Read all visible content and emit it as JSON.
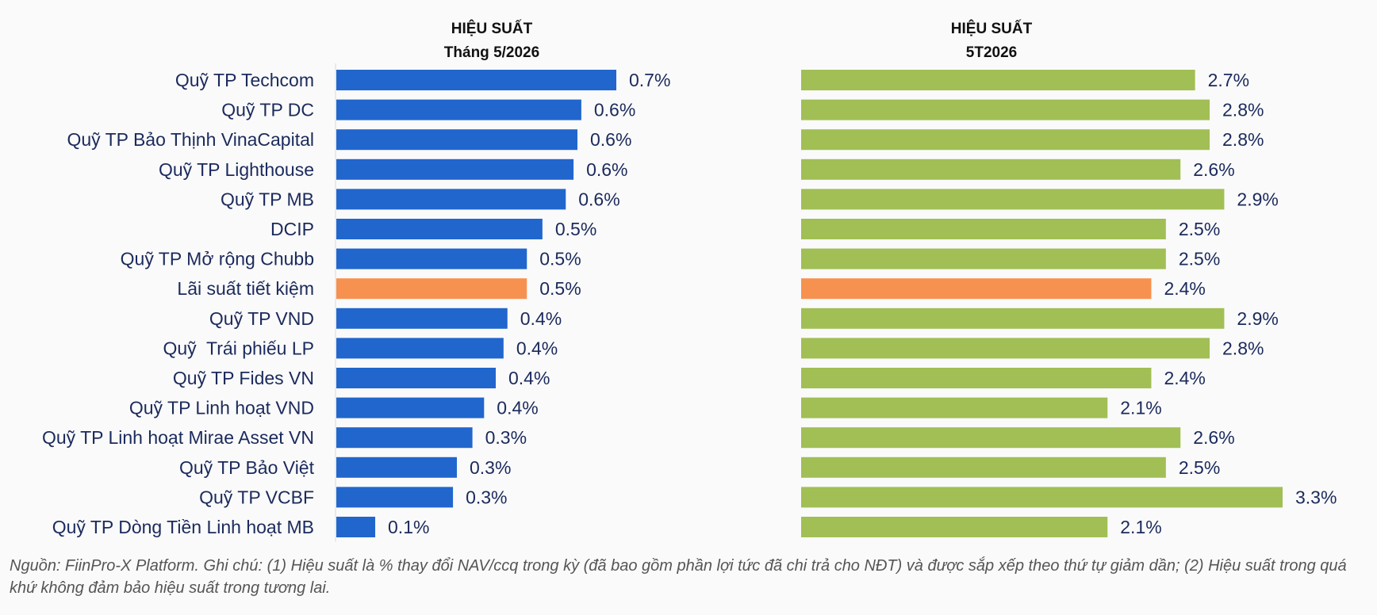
{
  "chart_data": [
    {
      "type": "bar",
      "orientation": "horizontal",
      "title": "HIỆU SUẤT",
      "subtitle": "Tháng 5/2026",
      "categories": [
        "Quỹ TP Techcom",
        "Quỹ TP DC",
        "Quỹ TP Bảo Thịnh VinaCapital",
        "Quỹ TP Lighthouse",
        "Quỹ TP MB",
        "DCIP",
        "Quỹ TP Mở rộng Chubb",
        "Lãi suất tiết kiệm",
        "Quỹ TP VND",
        "Quỹ  Trái phiếu LP",
        "Quỹ TP Fides VN",
        "Quỹ TP Linh hoạt VND",
        "Quỹ TP Linh hoạt Mirae Asset VN",
        "Quỹ TP Bảo Việt",
        "Quỹ TP VCBF",
        "Quỹ TP Dòng Tiền Linh hoạt MB"
      ],
      "values": [
        0.72,
        0.63,
        0.62,
        0.61,
        0.59,
        0.53,
        0.49,
        0.49,
        0.44,
        0.43,
        0.41,
        0.38,
        0.35,
        0.31,
        0.3,
        0.1
      ],
      "labels": [
        "0.7%",
        "0.6%",
        "0.6%",
        "0.6%",
        "0.6%",
        "0.5%",
        "0.5%",
        "0.5%",
        "0.4%",
        "0.4%",
        "0.4%",
        "0.4%",
        "0.3%",
        "0.3%",
        "0.3%",
        "0.1%"
      ],
      "highlight_index": 7,
      "bar_color": "#2166cd",
      "highlight_color": "#f79150",
      "xlim": [
        0,
        0.72
      ],
      "grid": false,
      "legend": "none"
    },
    {
      "type": "bar",
      "orientation": "horizontal",
      "title": "HIỆU SUẤT",
      "subtitle": "5T2026",
      "categories": [
        "Quỹ TP Techcom",
        "Quỹ TP DC",
        "Quỹ TP Bảo Thịnh VinaCapital",
        "Quỹ TP Lighthouse",
        "Quỹ TP MB",
        "DCIP",
        "Quỹ TP Mở rộng Chubb",
        "Lãi suất tiết kiệm",
        "Quỹ TP VND",
        "Quỹ  Trái phiếu LP",
        "Quỹ TP Fides VN",
        "Quỹ TP Linh hoạt VND",
        "Quỹ TP Linh hoạt Mirae Asset VN",
        "Quỹ TP Bảo Việt",
        "Quỹ TP VCBF",
        "Quỹ TP Dòng Tiền Linh hoạt MB"
      ],
      "values": [
        2.7,
        2.8,
        2.8,
        2.6,
        2.9,
        2.5,
        2.5,
        2.4,
        2.9,
        2.8,
        2.4,
        2.1,
        2.6,
        2.5,
        3.3,
        2.1
      ],
      "labels": [
        "2.7%",
        "2.8%",
        "2.8%",
        "2.6%",
        "2.9%",
        "2.5%",
        "2.5%",
        "2.4%",
        "2.9%",
        "2.8%",
        "2.4%",
        "2.1%",
        "2.6%",
        "2.5%",
        "3.3%",
        "2.1%"
      ],
      "highlight_index": 7,
      "bar_color": "#a1bf55",
      "highlight_color": "#f79150",
      "xlim": [
        0,
        3.3
      ],
      "grid": false,
      "legend": "none"
    }
  ],
  "footnote": "Nguồn: FiinPro-X Platform. Ghi chú: (1) Hiệu suất là % thay đổi NAV/ccq trong kỳ (đã bao gồm phần lợi tức đã chi trả cho NĐT) và được sắp xếp theo thứ tự giảm dần; (2) Hiệu suất trong quá khứ không đảm bảo hiệu suất trong tương lai."
}
